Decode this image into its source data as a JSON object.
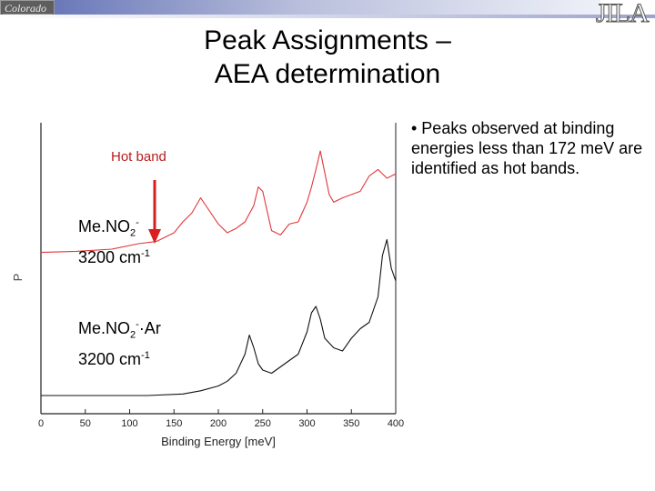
{
  "header": {
    "logo_left": "Colorado",
    "logo_right": "JILA"
  },
  "slide": {
    "title_line1": "Peak Assignments –",
    "title_line2": "AEA determination",
    "bullet": "• Peaks observed at binding energies less than 172 meV are identified as hot bands."
  },
  "annotations": {
    "hot_band": "Hot band",
    "series1_formula": "Me.NO",
    "series1_sub": "2",
    "series1_sup": "-",
    "series1_freq": "3200 cm",
    "series1_freq_sup": "-1",
    "series2_formula": "Me.NO",
    "series2_sub": "2",
    "series2_sup": "-",
    "series2_tail": "·Ar",
    "series2_freq": "3200 cm",
    "series2_freq_sup": "-1"
  },
  "colors": {
    "series1": "#e0363a",
    "series2": "#111111",
    "arrow": "#d81e1e",
    "hot_band_text": "#b81c1c"
  },
  "chart_data": {
    "type": "line",
    "xlabel": "Binding Energy [meV]",
    "ylabel": "P",
    "xlim": [
      0,
      400
    ],
    "xticks": [
      0,
      50,
      100,
      150,
      200,
      250,
      300,
      350,
      400
    ],
    "series": [
      {
        "name": "Me.NO2- 3200 cm-1",
        "x": [
          0,
          40,
          80,
          110,
          130,
          150,
          160,
          170,
          180,
          190,
          200,
          210,
          220,
          230,
          240,
          245,
          250,
          255,
          260,
          270,
          280,
          290,
          300,
          305,
          310,
          315,
          320,
          325,
          330,
          340,
          350,
          360,
          370,
          380,
          390,
          400
        ],
        "values": [
          0.02,
          0.03,
          0.05,
          0.1,
          0.12,
          0.2,
          0.3,
          0.38,
          0.52,
          0.4,
          0.28,
          0.2,
          0.24,
          0.3,
          0.45,
          0.62,
          0.58,
          0.4,
          0.22,
          0.18,
          0.28,
          0.3,
          0.48,
          0.62,
          0.78,
          0.95,
          0.75,
          0.55,
          0.48,
          0.52,
          0.55,
          0.58,
          0.72,
          0.78,
          0.7,
          0.74
        ]
      },
      {
        "name": "Me.NO2-·Ar 3200 cm-1",
        "x": [
          0,
          40,
          80,
          120,
          160,
          180,
          200,
          210,
          220,
          230,
          235,
          240,
          245,
          250,
          260,
          270,
          280,
          290,
          300,
          305,
          310,
          315,
          320,
          330,
          340,
          350,
          360,
          370,
          380,
          385,
          390,
          395,
          400
        ],
        "values": [
          0.0,
          0.0,
          0.0,
          0.0,
          0.01,
          0.03,
          0.06,
          0.09,
          0.14,
          0.26,
          0.38,
          0.3,
          0.2,
          0.16,
          0.14,
          0.18,
          0.22,
          0.26,
          0.4,
          0.52,
          0.56,
          0.48,
          0.36,
          0.3,
          0.28,
          0.36,
          0.42,
          0.46,
          0.62,
          0.88,
          0.98,
          0.8,
          0.72
        ]
      }
    ]
  }
}
